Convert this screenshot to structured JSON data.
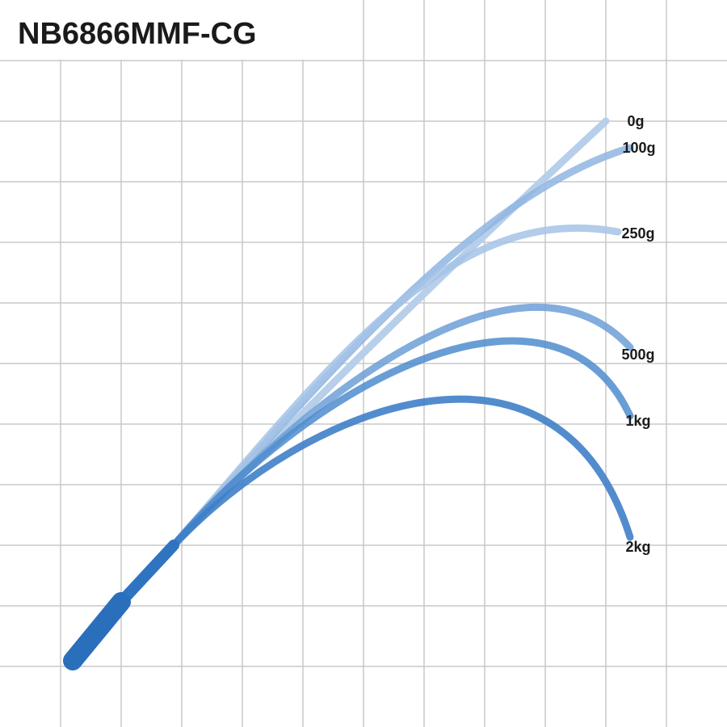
{
  "title": "NB6866MMF-CG",
  "curves": [
    {
      "label": "0g"
    },
    {
      "label": "100g"
    },
    {
      "label": "250g"
    },
    {
      "label": "500g"
    },
    {
      "label": "1kg"
    },
    {
      "label": "2kg"
    }
  ]
}
